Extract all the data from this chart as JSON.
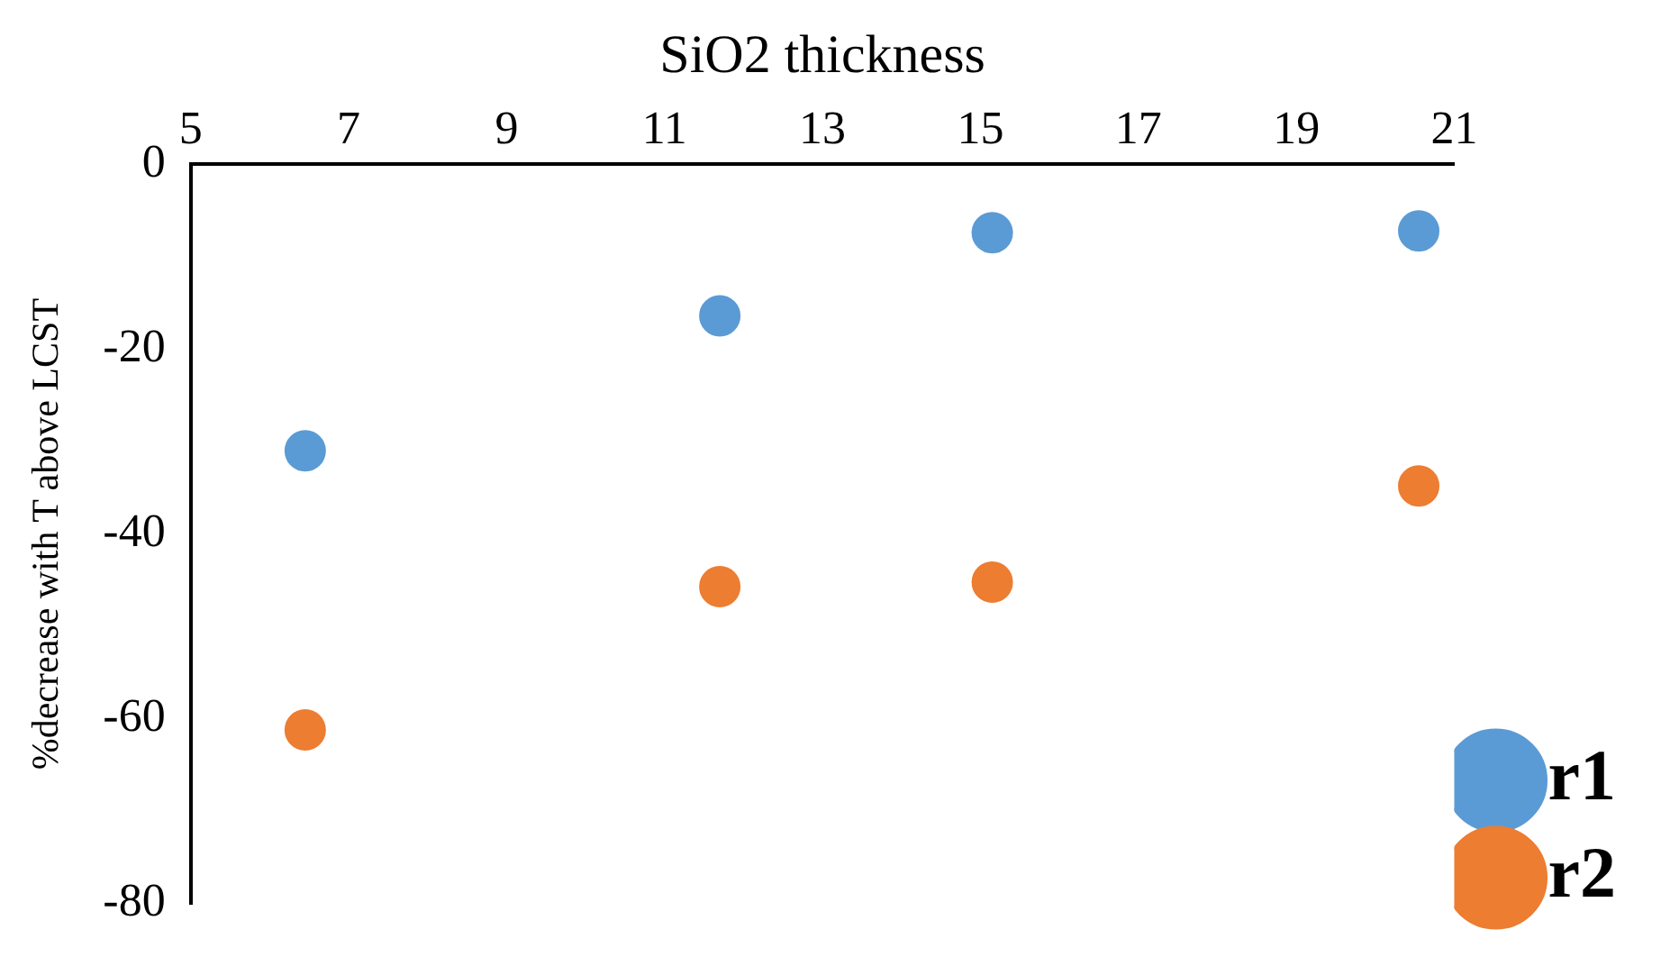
{
  "chart_data": {
    "type": "scatter",
    "xlabel": "SiO2 thickness",
    "ylabel": "%decrease with T above LCST",
    "xlim": [
      5,
      21
    ],
    "xticks": [
      5,
      7,
      9,
      11,
      13,
      15,
      17,
      19,
      21
    ],
    "ylim": [
      -80,
      0
    ],
    "yticks": [
      -80,
      -60,
      -40,
      -20,
      0
    ],
    "x": [
      6.45,
      11.7,
      15.15,
      20.55
    ],
    "series": [
      {
        "name": "r1",
        "color": "#5b9bd5",
        "values": [
          -31,
          -16.4,
          -7.4,
          -7.2
        ]
      },
      {
        "name": "r2",
        "color": "#ed7d31",
        "values": [
          -61.2,
          -45.7,
          -45.2,
          -34.8
        ]
      }
    ],
    "marker": "circle",
    "grid": false,
    "legend": "bottom right"
  }
}
